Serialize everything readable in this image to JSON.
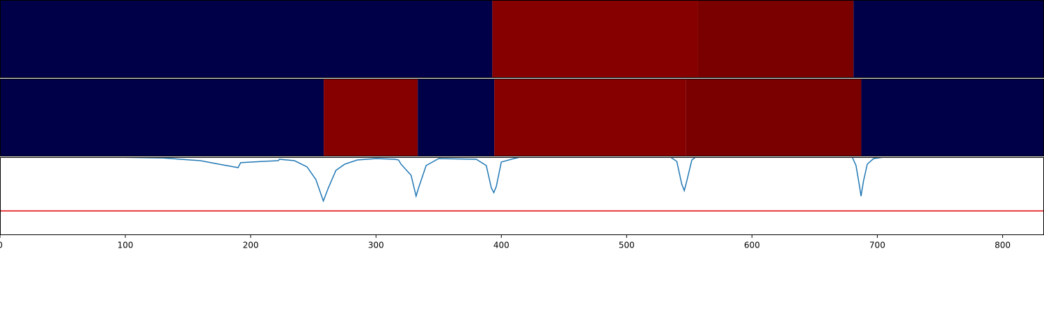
{
  "chart_data": {
    "type": "line",
    "xlim": [
      0,
      833
    ],
    "xticks": [
      0,
      100,
      200,
      300,
      400,
      500,
      600,
      700,
      800
    ],
    "ylim": [
      0,
      1
    ],
    "strips": [
      [
        {
          "start": 0,
          "end": 392.8,
          "color": "#000048"
        },
        {
          "start": 392.8,
          "end": 556.7,
          "color": "#870000"
        },
        {
          "start": 556.7,
          "end": 681,
          "color": "#7a0000"
        },
        {
          "start": 681,
          "end": 833,
          "color": "#000048"
        }
      ],
      [
        {
          "start": 0,
          "end": 258.3,
          "color": "#000048"
        },
        {
          "start": 258.3,
          "end": 333.3,
          "color": "#870000"
        },
        {
          "start": 333.3,
          "end": 394.4,
          "color": "#000048"
        },
        {
          "start": 394.4,
          "end": 547.2,
          "color": "#870000"
        },
        {
          "start": 547.2,
          "end": 687.2,
          "color": "#7a0000"
        },
        {
          "start": 687.2,
          "end": 833,
          "color": "#000048"
        }
      ]
    ],
    "x": [
      90,
      130,
      160,
      175,
      190,
      192,
      210,
      222,
      223,
      235,
      245,
      252,
      258,
      262,
      268,
      275,
      285,
      300,
      315,
      318,
      320,
      328,
      332,
      334,
      340,
      350,
      380,
      388,
      392,
      394,
      396,
      400,
      410,
      415,
      535,
      540,
      544,
      546,
      548,
      552,
      555,
      680,
      683,
      686,
      687,
      689,
      692,
      697,
      705,
      830
    ],
    "series": [
      {
        "color": "#1f77b4",
        "values": [
          1.0,
          0.99,
          0.955,
          0.91,
          0.866,
          0.93,
          0.946,
          0.955,
          0.973,
          0.955,
          0.875,
          0.714,
          0.438,
          0.607,
          0.83,
          0.91,
          0.964,
          0.982,
          0.973,
          0.964,
          0.91,
          0.768,
          0.5,
          0.607,
          0.893,
          0.982,
          0.973,
          0.893,
          0.607,
          0.545,
          0.625,
          0.938,
          0.982,
          1.0,
          1.0,
          0.946,
          0.652,
          0.571,
          0.696,
          0.964,
          1.0,
          1.0,
          0.893,
          0.607,
          0.5,
          0.696,
          0.911,
          0.982,
          1.0,
          1.0
        ]
      }
    ],
    "hline": {
      "value": 0.31,
      "color": "#e00000"
    }
  }
}
